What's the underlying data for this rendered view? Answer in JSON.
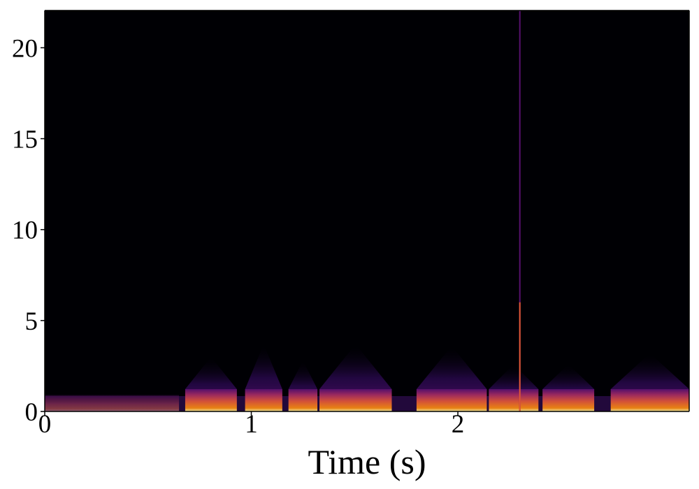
{
  "chart_data": {
    "type": "spectrogram",
    "colormap": "inferno",
    "xlabel": "Time (s)",
    "xlim": [
      0,
      3.12
    ],
    "xticks": [
      0,
      1,
      2
    ],
    "ylim": [
      0,
      22.05
    ],
    "yticks": [
      0,
      5,
      10,
      15,
      20
    ],
    "bursts": {
      "start": [
        0,
        0.68,
        0.97,
        1.18,
        1.33,
        1.8,
        2.15,
        2.41,
        2.74
      ],
      "end": [
        0.65,
        0.93,
        1.15,
        1.32,
        1.68,
        2.14,
        2.39,
        2.66,
        3.12
      ],
      "top": [
        0.9,
        3,
        3.7,
        2.8,
        3.7,
        3.6,
        2.6,
        2.6,
        3.2
      ]
    },
    "spike": {
      "x": 2.3,
      "top": 22.05
    }
  }
}
